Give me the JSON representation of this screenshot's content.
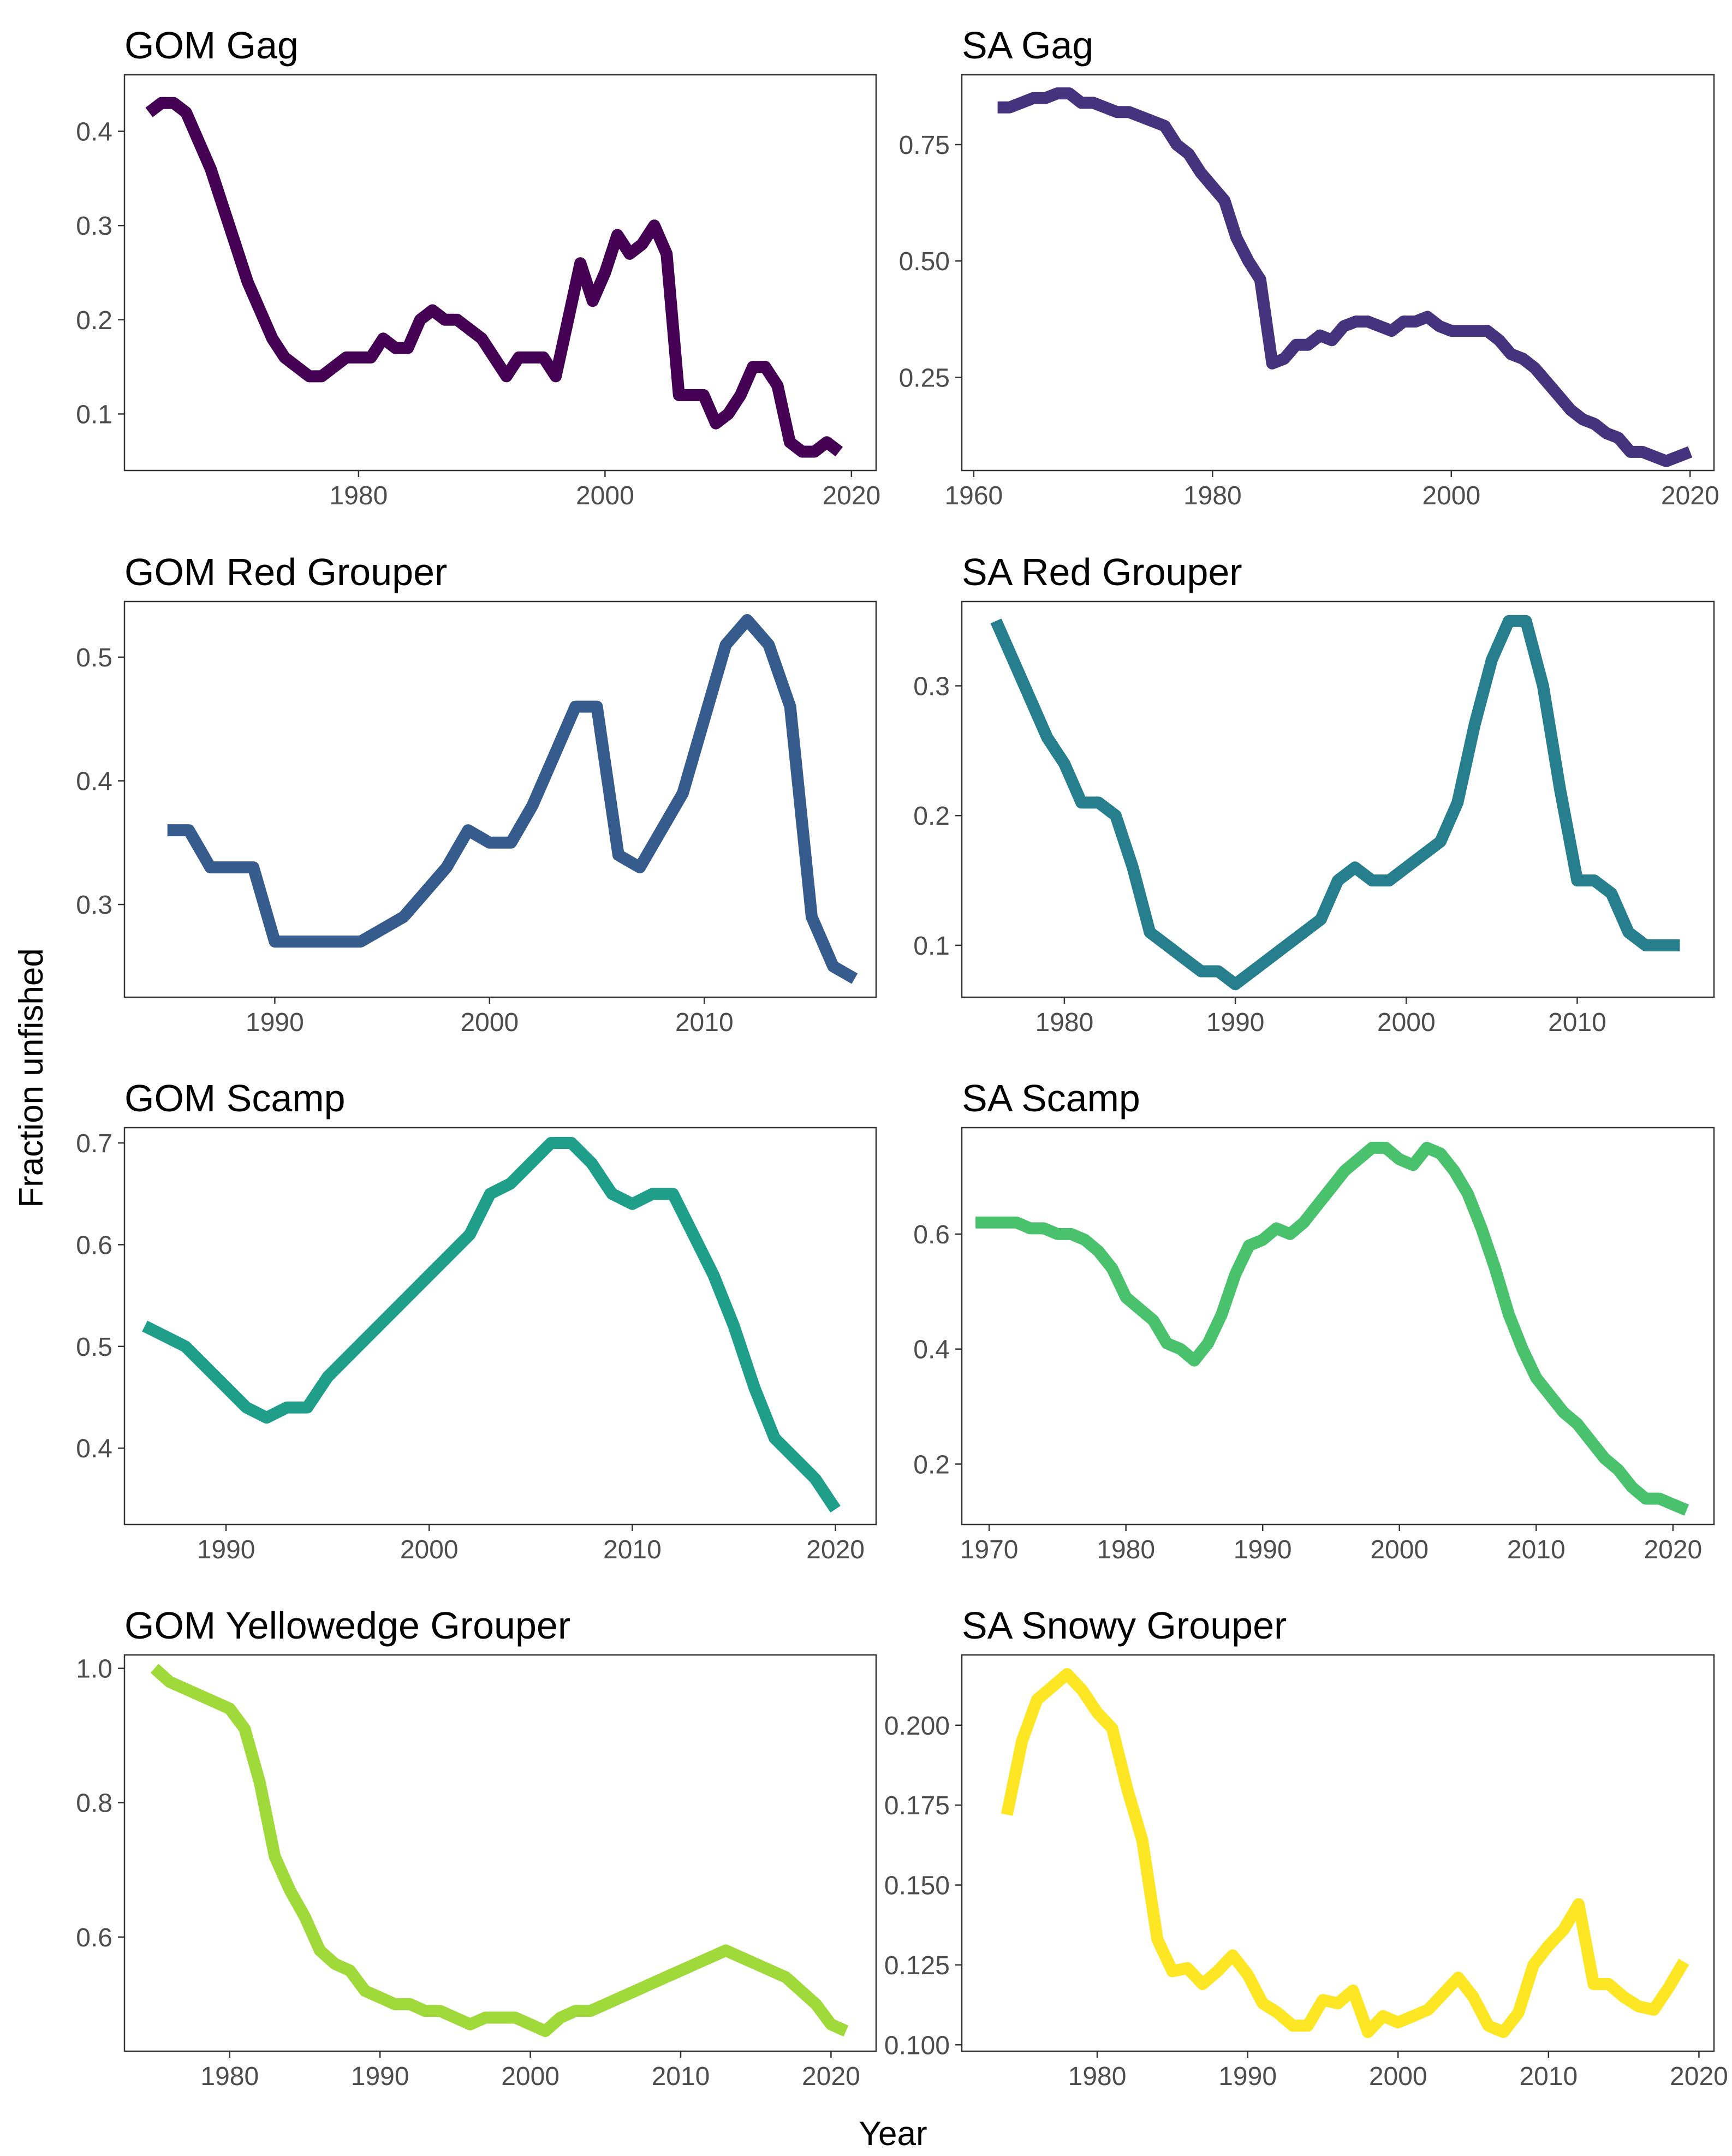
{
  "figure": {
    "ylabel": "Fraction unfished",
    "xlabel": "Year"
  },
  "chart_data": [
    {
      "type": "line",
      "title": "GOM Gag",
      "color": "#440154",
      "xlim": [
        1961,
        2022
      ],
      "ylim": [
        0.04,
        0.46
      ],
      "xticks": [
        1980,
        2000,
        2020
      ],
      "yticks": [
        0.1,
        0.2,
        0.3,
        0.4
      ],
      "ytick_labels": [
        "0.1",
        "0.2",
        "0.3",
        "0.4"
      ],
      "x": [
        1963,
        1964,
        1965,
        1966,
        1967,
        1968,
        1969,
        1970,
        1971,
        1972,
        1973,
        1974,
        1975,
        1976,
        1977,
        1978,
        1979,
        1980,
        1981,
        1982,
        1983,
        1984,
        1985,
        1986,
        1987,
        1988,
        1989,
        1990,
        1991,
        1992,
        1993,
        1994,
        1995,
        1996,
        1997,
        1998,
        1999,
        2000,
        2001,
        2002,
        2003,
        2004,
        2005,
        2006,
        2007,
        2008,
        2009,
        2010,
        2011,
        2012,
        2013,
        2014,
        2015,
        2016,
        2017,
        2018,
        2019
      ],
      "y": [
        0.42,
        0.43,
        0.43,
        0.42,
        0.39,
        0.36,
        0.32,
        0.28,
        0.24,
        0.21,
        0.18,
        0.16,
        0.15,
        0.14,
        0.14,
        0.15,
        0.16,
        0.16,
        0.16,
        0.18,
        0.17,
        0.17,
        0.2,
        0.21,
        0.2,
        0.2,
        0.19,
        0.18,
        0.16,
        0.14,
        0.16,
        0.16,
        0.16,
        0.14,
        0.2,
        0.26,
        0.22,
        0.25,
        0.29,
        0.27,
        0.28,
        0.3,
        0.27,
        0.12,
        0.12,
        0.12,
        0.09,
        0.1,
        0.12,
        0.15,
        0.15,
        0.13,
        0.07,
        0.06,
        0.06,
        0.07,
        0.06
      ]
    },
    {
      "type": "line",
      "title": "SA Gag",
      "color": "#46337e",
      "xlim": [
        1959,
        2022
      ],
      "ylim": [
        0.05,
        0.9
      ],
      "xticks": [
        1960,
        1980,
        2000,
        2020
      ],
      "yticks": [
        0.25,
        0.5,
        0.75
      ],
      "ytick_labels": [
        "0.25",
        "0.50",
        "0.75"
      ],
      "x": [
        1962,
        1963,
        1964,
        1965,
        1966,
        1967,
        1968,
        1969,
        1970,
        1971,
        1972,
        1973,
        1974,
        1975,
        1976,
        1977,
        1978,
        1979,
        1980,
        1981,
        1982,
        1983,
        1984,
        1985,
        1986,
        1987,
        1988,
        1989,
        1990,
        1991,
        1992,
        1993,
        1994,
        1995,
        1996,
        1997,
        1998,
        1999,
        2000,
        2001,
        2002,
        2003,
        2004,
        2005,
        2006,
        2007,
        2008,
        2009,
        2010,
        2011,
        2012,
        2013,
        2014,
        2015,
        2016,
        2017,
        2018,
        2019,
        2020
      ],
      "y": [
        0.83,
        0.83,
        0.84,
        0.85,
        0.85,
        0.86,
        0.86,
        0.84,
        0.84,
        0.83,
        0.82,
        0.82,
        0.81,
        0.8,
        0.79,
        0.75,
        0.73,
        0.69,
        0.66,
        0.63,
        0.55,
        0.5,
        0.46,
        0.28,
        0.29,
        0.32,
        0.32,
        0.34,
        0.33,
        0.36,
        0.37,
        0.37,
        0.36,
        0.35,
        0.37,
        0.37,
        0.38,
        0.36,
        0.35,
        0.35,
        0.35,
        0.35,
        0.33,
        0.3,
        0.29,
        0.27,
        0.24,
        0.21,
        0.18,
        0.16,
        0.15,
        0.13,
        0.12,
        0.09,
        0.09,
        0.08,
        0.07,
        0.08,
        0.09
      ]
    },
    {
      "type": "line",
      "title": "GOM Red Grouper",
      "color": "#365c8d",
      "xlim": [
        1983,
        2018
      ],
      "ylim": [
        0.225,
        0.545
      ],
      "xticks": [
        1990,
        2000,
        2010
      ],
      "yticks": [
        0.3,
        0.4,
        0.5
      ],
      "ytick_labels": [
        "0.3",
        "0.4",
        "0.5"
      ],
      "x": [
        1985,
        1986,
        1987,
        1988,
        1989,
        1990,
        1991,
        1992,
        1993,
        1994,
        1995,
        1996,
        1997,
        1998,
        1999,
        2000,
        2001,
        2002,
        2003,
        2004,
        2005,
        2006,
        2007,
        2008,
        2009,
        2010,
        2011,
        2012,
        2013,
        2014,
        2015,
        2016,
        2017
      ],
      "y": [
        0.36,
        0.36,
        0.33,
        0.33,
        0.33,
        0.27,
        0.27,
        0.27,
        0.27,
        0.27,
        0.28,
        0.29,
        0.31,
        0.33,
        0.36,
        0.35,
        0.35,
        0.38,
        0.42,
        0.46,
        0.46,
        0.34,
        0.33,
        0.36,
        0.39,
        0.45,
        0.51,
        0.53,
        0.51,
        0.46,
        0.29,
        0.25,
        0.24
      ]
    },
    {
      "type": "line",
      "title": "SA Red Grouper",
      "color": "#277f8e",
      "xlim": [
        1974,
        2018
      ],
      "ylim": [
        0.06,
        0.365
      ],
      "xticks": [
        1980,
        1990,
        2000,
        2010
      ],
      "yticks": [
        0.1,
        0.2,
        0.3
      ],
      "ytick_labels": [
        "0.1",
        "0.2",
        "0.3"
      ],
      "x": [
        1976,
        1977,
        1978,
        1979,
        1980,
        1981,
        1982,
        1983,
        1984,
        1985,
        1986,
        1987,
        1988,
        1989,
        1990,
        1991,
        1992,
        1993,
        1994,
        1995,
        1996,
        1997,
        1998,
        1999,
        2000,
        2001,
        2002,
        2003,
        2004,
        2005,
        2006,
        2007,
        2008,
        2009,
        2010,
        2011,
        2012,
        2013,
        2014,
        2015,
        2016
      ],
      "y": [
        0.35,
        0.32,
        0.29,
        0.26,
        0.24,
        0.21,
        0.21,
        0.2,
        0.16,
        0.11,
        0.1,
        0.09,
        0.08,
        0.08,
        0.07,
        0.08,
        0.09,
        0.1,
        0.11,
        0.12,
        0.15,
        0.16,
        0.15,
        0.15,
        0.16,
        0.17,
        0.18,
        0.21,
        0.27,
        0.32,
        0.35,
        0.35,
        0.3,
        0.22,
        0.15,
        0.15,
        0.14,
        0.11,
        0.1,
        0.1,
        0.1
      ]
    },
    {
      "type": "line",
      "title": "GOM Scamp",
      "color": "#1f9e89",
      "xlim": [
        1985,
        2022
      ],
      "ylim": [
        0.325,
        0.715
      ],
      "xticks": [
        1990,
        2000,
        2010,
        2020
      ],
      "yticks": [
        0.4,
        0.5,
        0.6,
        0.7
      ],
      "ytick_labels": [
        "0.4",
        "0.5",
        "0.6",
        "0.7"
      ],
      "x": [
        1986,
        1987,
        1988,
        1989,
        1990,
        1991,
        1992,
        1993,
        1994,
        1995,
        1996,
        1997,
        1998,
        1999,
        2000,
        2001,
        2002,
        2003,
        2004,
        2005,
        2006,
        2007,
        2008,
        2009,
        2010,
        2011,
        2012,
        2013,
        2014,
        2015,
        2016,
        2017,
        2018,
        2019,
        2020
      ],
      "y": [
        0.52,
        0.51,
        0.5,
        0.48,
        0.46,
        0.44,
        0.43,
        0.44,
        0.44,
        0.47,
        0.49,
        0.51,
        0.53,
        0.55,
        0.57,
        0.59,
        0.61,
        0.65,
        0.66,
        0.68,
        0.7,
        0.7,
        0.68,
        0.65,
        0.64,
        0.65,
        0.65,
        0.61,
        0.57,
        0.52,
        0.46,
        0.41,
        0.39,
        0.37,
        0.34
      ]
    },
    {
      "type": "line",
      "title": "SA Scamp",
      "color": "#4ac16d",
      "xlim": [
        1968,
        2023
      ],
      "ylim": [
        0.095,
        0.785
      ],
      "xticks": [
        1970,
        1980,
        1990,
        2000,
        2010,
        2020
      ],
      "yticks": [
        0.2,
        0.4,
        0.6
      ],
      "ytick_labels": [
        "0.2",
        "0.4",
        "0.6"
      ],
      "x": [
        1969,
        1970,
        1971,
        1972,
        1973,
        1974,
        1975,
        1976,
        1977,
        1978,
        1979,
        1980,
        1981,
        1982,
        1983,
        1984,
        1985,
        1986,
        1987,
        1988,
        1989,
        1990,
        1991,
        1992,
        1993,
        1994,
        1995,
        1996,
        1997,
        1998,
        1999,
        2000,
        2001,
        2002,
        2003,
        2004,
        2005,
        2006,
        2007,
        2008,
        2009,
        2010,
        2011,
        2012,
        2013,
        2014,
        2015,
        2016,
        2017,
        2018,
        2019,
        2020,
        2021
      ],
      "y": [
        0.62,
        0.62,
        0.62,
        0.62,
        0.61,
        0.61,
        0.6,
        0.6,
        0.59,
        0.57,
        0.54,
        0.49,
        0.47,
        0.45,
        0.41,
        0.4,
        0.38,
        0.41,
        0.46,
        0.53,
        0.58,
        0.59,
        0.61,
        0.6,
        0.62,
        0.65,
        0.68,
        0.71,
        0.73,
        0.75,
        0.75,
        0.73,
        0.72,
        0.75,
        0.74,
        0.71,
        0.67,
        0.61,
        0.54,
        0.46,
        0.4,
        0.35,
        0.32,
        0.29,
        0.27,
        0.24,
        0.21,
        0.19,
        0.16,
        0.14,
        0.14,
        0.13,
        0.12
      ]
    },
    {
      "type": "line",
      "title": "GOM Yellowedge Grouper",
      "color": "#9fda3a",
      "xlim": [
        1973,
        2023
      ],
      "ylim": [
        0.43,
        1.02
      ],
      "xticks": [
        1980,
        1990,
        2000,
        2010,
        2020
      ],
      "yticks": [
        0.6,
        0.8,
        1.0
      ],
      "ytick_labels": [
        "0.6",
        "0.8",
        "1.0"
      ],
      "x": [
        1975,
        1976,
        1977,
        1978,
        1979,
        1980,
        1981,
        1982,
        1983,
        1984,
        1985,
        1986,
        1987,
        1988,
        1989,
        1990,
        1991,
        1992,
        1993,
        1994,
        1995,
        1996,
        1997,
        1998,
        1999,
        2000,
        2001,
        2002,
        2003,
        2004,
        2005,
        2006,
        2007,
        2008,
        2009,
        2010,
        2011,
        2012,
        2013,
        2014,
        2015,
        2016,
        2017,
        2018,
        2019,
        2020,
        2021
      ],
      "y": [
        1.0,
        0.98,
        0.97,
        0.96,
        0.95,
        0.94,
        0.91,
        0.83,
        0.72,
        0.67,
        0.63,
        0.58,
        0.56,
        0.55,
        0.52,
        0.51,
        0.5,
        0.5,
        0.49,
        0.49,
        0.48,
        0.47,
        0.48,
        0.48,
        0.48,
        0.47,
        0.46,
        0.48,
        0.49,
        0.49,
        0.5,
        0.51,
        0.52,
        0.53,
        0.54,
        0.55,
        0.56,
        0.57,
        0.58,
        0.57,
        0.56,
        0.55,
        0.54,
        0.52,
        0.5,
        0.47,
        0.46
      ]
    },
    {
      "type": "line",
      "title": "SA Snowy Grouper",
      "color": "#fde725",
      "xlim": [
        1971,
        2021
      ],
      "ylim": [
        0.098,
        0.222
      ],
      "xticks": [
        1980,
        1990,
        2000,
        2010,
        2020
      ],
      "yticks": [
        0.1,
        0.125,
        0.15,
        0.175,
        0.2
      ],
      "ytick_labels": [
        "0.100",
        "0.125",
        "0.150",
        "0.175",
        "0.200"
      ],
      "x": [
        1974,
        1975,
        1976,
        1977,
        1978,
        1979,
        1980,
        1981,
        1982,
        1983,
        1984,
        1985,
        1986,
        1987,
        1988,
        1989,
        1990,
        1991,
        1992,
        1993,
        1994,
        1995,
        1996,
        1997,
        1998,
        1999,
        2000,
        2001,
        2002,
        2003,
        2004,
        2005,
        2006,
        2007,
        2008,
        2009,
        2010,
        2011,
        2012,
        2013,
        2014,
        2015,
        2016,
        2017,
        2018,
        2019
      ],
      "y": [
        0.172,
        0.195,
        0.208,
        0.212,
        0.216,
        0.211,
        0.204,
        0.199,
        0.18,
        0.164,
        0.133,
        0.123,
        0.124,
        0.119,
        0.123,
        0.128,
        0.122,
        0.113,
        0.11,
        0.106,
        0.106,
        0.114,
        0.113,
        0.117,
        0.104,
        0.109,
        0.107,
        0.109,
        0.111,
        0.116,
        0.121,
        0.115,
        0.106,
        0.104,
        0.11,
        0.125,
        0.131,
        0.136,
        0.144,
        0.119,
        0.119,
        0.115,
        0.112,
        0.111,
        0.118,
        0.126
      ]
    }
  ]
}
